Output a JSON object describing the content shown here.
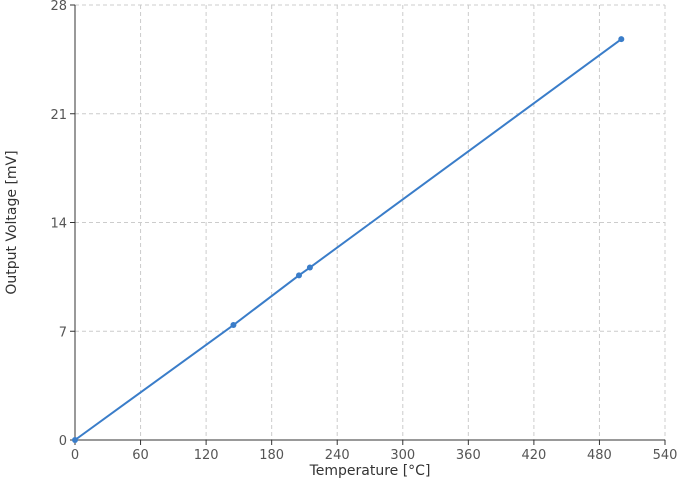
{
  "chart_data": {
    "type": "line",
    "title": "",
    "xlabel": "Temperature [°C]",
    "ylabel": "Output Voltage [mV]",
    "xlim": [
      0,
      540
    ],
    "ylim": [
      0,
      28
    ],
    "x_ticks": [
      0,
      60,
      120,
      180,
      240,
      300,
      360,
      420,
      480,
      540
    ],
    "y_ticks": [
      0,
      7,
      14,
      21,
      28
    ],
    "grid": true,
    "legend": "none",
    "series": [
      {
        "color": "#3a7dc9",
        "x": [
          0,
          145,
          205,
          215,
          500
        ],
        "y": [
          0,
          7.4,
          10.6,
          11.1,
          25.8
        ]
      }
    ]
  }
}
